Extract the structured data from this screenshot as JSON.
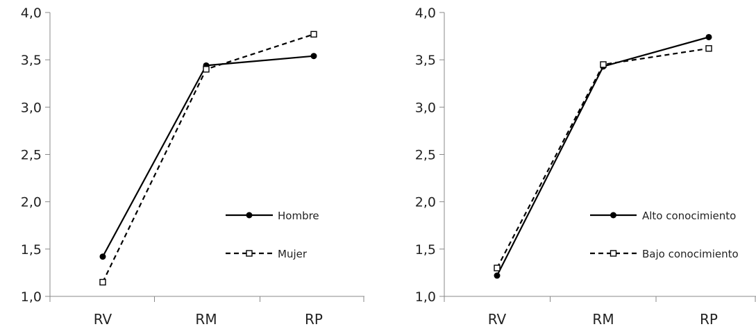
{
  "chart_data": [
    {
      "type": "line",
      "categories": [
        "RV",
        "RM",
        "RP"
      ],
      "ylim": [
        1.0,
        4.0
      ],
      "yticks": [
        "1,0",
        "1,5",
        "2,0",
        "2,5",
        "3,0",
        "3,5",
        "4,0"
      ],
      "grid": false,
      "legend_position": "right-bottom",
      "series": [
        {
          "name": "Hombre",
          "values": [
            1.42,
            3.44,
            3.54
          ],
          "style": "solid",
          "marker": "filled-circle",
          "color": "#000000"
        },
        {
          "name": "Mujer",
          "values": [
            1.15,
            3.4,
            3.77
          ],
          "style": "dashed",
          "marker": "open-square",
          "color": "#000000"
        }
      ]
    },
    {
      "type": "line",
      "categories": [
        "RV",
        "RM",
        "RP"
      ],
      "ylim": [
        1.0,
        4.0
      ],
      "yticks": [
        "1,0",
        "1,5",
        "2,0",
        "2,5",
        "3,0",
        "3,5",
        "4,0"
      ],
      "grid": false,
      "legend_position": "right-bottom",
      "series": [
        {
          "name": "Alto conocimiento",
          "values": [
            1.22,
            3.43,
            3.74
          ],
          "style": "solid",
          "marker": "filled-circle",
          "color": "#000000"
        },
        {
          "name": "Bajo conocimiento",
          "values": [
            1.3,
            3.45,
            3.62
          ],
          "style": "dashed",
          "marker": "open-square",
          "color": "#000000"
        }
      ]
    }
  ]
}
